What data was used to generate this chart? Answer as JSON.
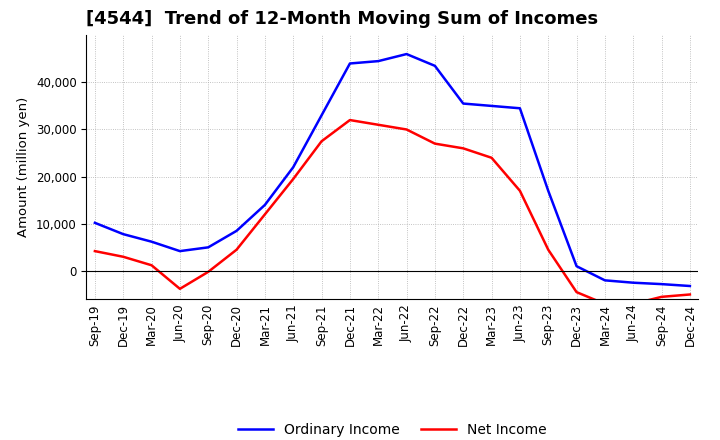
{
  "title": "[4544]  Trend of 12-Month Moving Sum of Incomes",
  "ylabel": "Amount (million yen)",
  "x_labels": [
    "Sep-19",
    "Dec-19",
    "Mar-20",
    "Jun-20",
    "Sep-20",
    "Dec-20",
    "Mar-21",
    "Jun-21",
    "Sep-21",
    "Dec-21",
    "Mar-22",
    "Jun-22",
    "Sep-22",
    "Dec-22",
    "Mar-23",
    "Jun-23",
    "Sep-23",
    "Dec-23",
    "Mar-24",
    "Jun-24",
    "Sep-24",
    "Dec-24"
  ],
  "ordinary_income": [
    10200,
    7800,
    6200,
    4200,
    5000,
    8500,
    14000,
    22000,
    33000,
    44000,
    44500,
    46000,
    43500,
    35500,
    35000,
    34500,
    17000,
    1000,
    -2000,
    -2500,
    -2800,
    -3200
  ],
  "net_income": [
    4200,
    3000,
    1200,
    -3800,
    -200,
    4500,
    12000,
    19500,
    27500,
    32000,
    31000,
    30000,
    27000,
    26000,
    24000,
    17000,
    4500,
    -4500,
    -7000,
    -7000,
    -5500,
    -5000
  ],
  "ordinary_color": "#0000ff",
  "net_color": "#ff0000",
  "background_color": "#ffffff",
  "grid_color": "#b0b0b0",
  "ylim_min": -6000,
  "ylim_max": 50000,
  "yticks": [
    0,
    10000,
    20000,
    30000,
    40000
  ],
  "legend_labels": [
    "Ordinary Income",
    "Net Income"
  ],
  "title_fontsize": 13,
  "axis_fontsize": 8.5,
  "label_fontsize": 9.5
}
